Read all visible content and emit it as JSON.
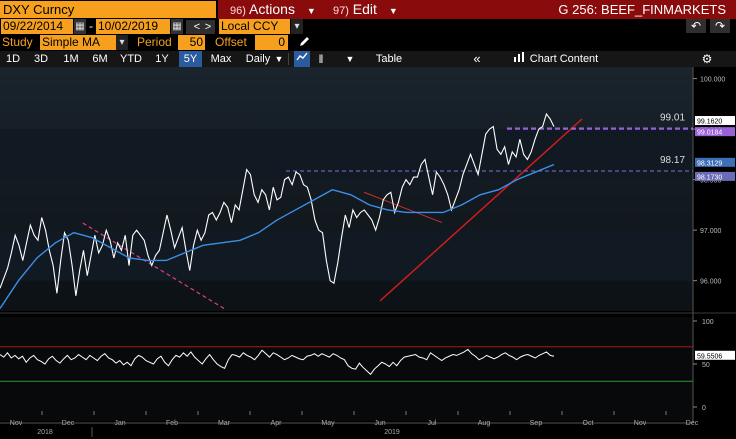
{
  "header": {
    "ticker": "DXY Curncy",
    "actions_num": "96)",
    "actions_label": "Actions",
    "edit_num": "97)",
    "edit_label": "Edit",
    "graph_title": "G 256: BEEF_FINMARKETS"
  },
  "range": {
    "start_date": "09/22/2014",
    "end_date": "10/02/2019",
    "currency": "Local CCY"
  },
  "study": {
    "study_label": "Study",
    "study_value": "Simple MA",
    "period_label": "Period",
    "period_value": "50",
    "offset_label": "Offset",
    "offset_value": "0"
  },
  "toolbar": {
    "periods": [
      "1D",
      "3D",
      "1M",
      "6M",
      "YTD",
      "1Y",
      "5Y",
      "Max"
    ],
    "active_period": "5Y",
    "frequency": "Daily",
    "table_label": "Table",
    "chart_content_label": "Chart Content"
  },
  "colors": {
    "accent_orange": "#f7a01e",
    "header_red": "#8a0b0b",
    "price_line": "#ffffff",
    "ma_line": "#3d8ee8",
    "trend_line": "#d21b1b",
    "dashed_trend": "#e0407a",
    "level_dashed": "#9a62d8",
    "rsi_upper": "#b01818",
    "rsi_lower": "#2e9a2e"
  },
  "icons": [
    "chevron-down-icon",
    "calendar-icon",
    "pencil-icon",
    "line-chart-icon",
    "candles-icon",
    "double-chevron-left-icon",
    "bar-chart-icon",
    "gear-icon",
    "undo-icon",
    "redo-icon"
  ],
  "chart_data": [
    {
      "type": "line",
      "title": "DXY Curncy",
      "ylim": [
        95.4,
        100.15
      ],
      "y_ticks": [
        "100.000",
        "99.000",
        "98.000",
        "97.000",
        "96.000"
      ],
      "x_tick_labels": [
        "Nov",
        "Dec",
        "Jan",
        "Feb",
        "Mar",
        "Apr",
        "May",
        "Jun",
        "Jul",
        "Aug",
        "Sep",
        "Oct",
        "Nov",
        "Dec"
      ],
      "year_labels": [
        "2018",
        "2019"
      ],
      "annotations": [
        "99.01",
        "98.17"
      ],
      "right_labels": [
        "99.1620",
        "99.0184",
        "98.3129",
        "98.1730"
      ],
      "series": [
        {
          "name": "Price",
          "values": [
            95.85,
            96.05,
            96.25,
            96.55,
            96.9,
            96.7,
            96.4,
            96.75,
            97.1,
            96.9,
            96.8,
            97.25,
            97.0,
            96.6,
            96.3,
            95.75,
            96.4,
            96.95,
            96.8,
            96.3,
            95.7,
            96.2,
            96.6,
            96.1,
            96.5,
            96.9,
            96.55,
            96.7,
            97.0,
            96.8,
            96.45,
            96.75,
            96.6,
            96.9,
            96.3,
            96.9,
            97.0,
            96.9,
            96.8,
            96.5,
            96.3,
            96.5,
            96.6,
            96.95,
            97.3,
            97.0,
            96.65,
            96.85,
            97.05,
            96.6,
            96.2,
            96.7,
            97.0,
            96.8,
            96.95,
            97.3,
            97.35,
            97.2,
            97.35,
            97.55,
            97.45,
            97.15,
            97.5,
            97.4,
            97.8,
            98.2,
            98.1,
            97.7,
            97.55,
            97.8,
            97.7,
            97.4,
            97.85,
            97.6,
            97.65,
            98.0,
            98.05,
            97.9,
            98.15,
            98.1,
            97.9,
            97.85,
            97.6,
            97.2,
            97.0,
            96.95,
            96.4,
            96.0,
            95.95,
            96.35,
            96.85,
            97.3,
            97.05,
            97.4,
            97.25,
            97.35,
            97.4,
            97.3,
            97.2,
            97.0,
            97.25,
            97.6,
            97.7,
            97.75,
            97.35,
            97.55,
            97.85,
            98.0,
            97.9,
            98.05,
            98.05,
            98.3,
            98.4,
            98.05,
            97.7,
            98.15,
            98.05,
            97.9,
            97.7,
            97.4,
            97.6,
            97.8,
            98.1,
            98.3,
            98.5,
            98.3,
            98.1,
            98.5,
            98.9,
            99.0,
            99.05,
            98.6,
            98.5,
            98.65,
            98.3,
            98.55,
            98.45,
            98.8,
            98.5,
            98.4,
            98.55,
            98.8,
            99.0,
            99.05,
            99.3,
            99.2,
            99.05
          ]
        },
        {
          "name": "MA (50)",
          "values": [
            95.45,
            96.0,
            96.45,
            96.75,
            96.95,
            96.85,
            96.65,
            96.45,
            96.4,
            96.4,
            96.55,
            96.7,
            96.75,
            96.8,
            96.95,
            97.2,
            97.4,
            97.6,
            97.8,
            97.7,
            97.5,
            97.4,
            97.35,
            97.35,
            97.35,
            97.5,
            97.7,
            97.8,
            98.0,
            98.15,
            98.3
          ]
        }
      ],
      "trendlines": [
        {
          "from": [
            "Jun",
            95.6
          ],
          "to": [
            "Sep",
            99.2
          ]
        },
        {
          "from": [
            "Mar",
            95.45
          ],
          "to": [
            "Dec",
            97.15
          ]
        }
      ]
    },
    {
      "type": "line",
      "title": "RSI",
      "ylim": [
        0,
        100
      ],
      "y_ticks": [
        "100",
        "50",
        "0"
      ],
      "right_label": "59.5506",
      "bands": [
        70,
        30
      ],
      "series": [
        {
          "name": "RSI",
          "values": [
            61,
            58,
            63,
            57,
            60,
            56,
            59,
            52,
            57,
            60,
            55,
            53,
            50,
            56,
            59,
            54,
            51,
            56,
            60,
            55,
            57,
            61,
            58,
            55,
            60,
            57,
            54,
            59,
            62,
            57,
            55,
            51,
            54,
            49,
            52,
            48,
            56,
            60,
            58,
            54,
            52,
            50,
            56,
            59,
            52,
            48,
            55,
            60,
            58,
            63,
            59,
            64,
            58,
            54,
            50,
            56,
            61,
            55,
            50,
            47,
            45,
            55,
            61,
            60,
            58,
            63,
            60,
            58,
            55,
            60,
            66,
            62,
            58,
            63,
            61,
            58,
            55,
            57,
            60,
            58,
            56,
            55,
            59,
            60,
            62,
            59,
            62,
            60,
            58,
            62,
            60,
            57,
            55,
            48,
            45,
            44,
            51,
            46,
            42,
            38,
            44,
            48,
            52,
            50,
            47,
            52,
            48,
            54,
            58,
            59,
            60,
            61,
            58,
            57,
            55,
            63,
            60,
            57,
            54,
            57,
            59,
            61,
            60,
            62,
            64,
            67,
            62,
            59,
            55,
            57,
            60,
            58,
            56,
            58,
            61,
            63,
            60,
            58,
            55,
            58,
            60,
            61,
            59,
            57,
            60,
            62,
            64,
            60,
            59
          ]
        }
      ]
    }
  ]
}
